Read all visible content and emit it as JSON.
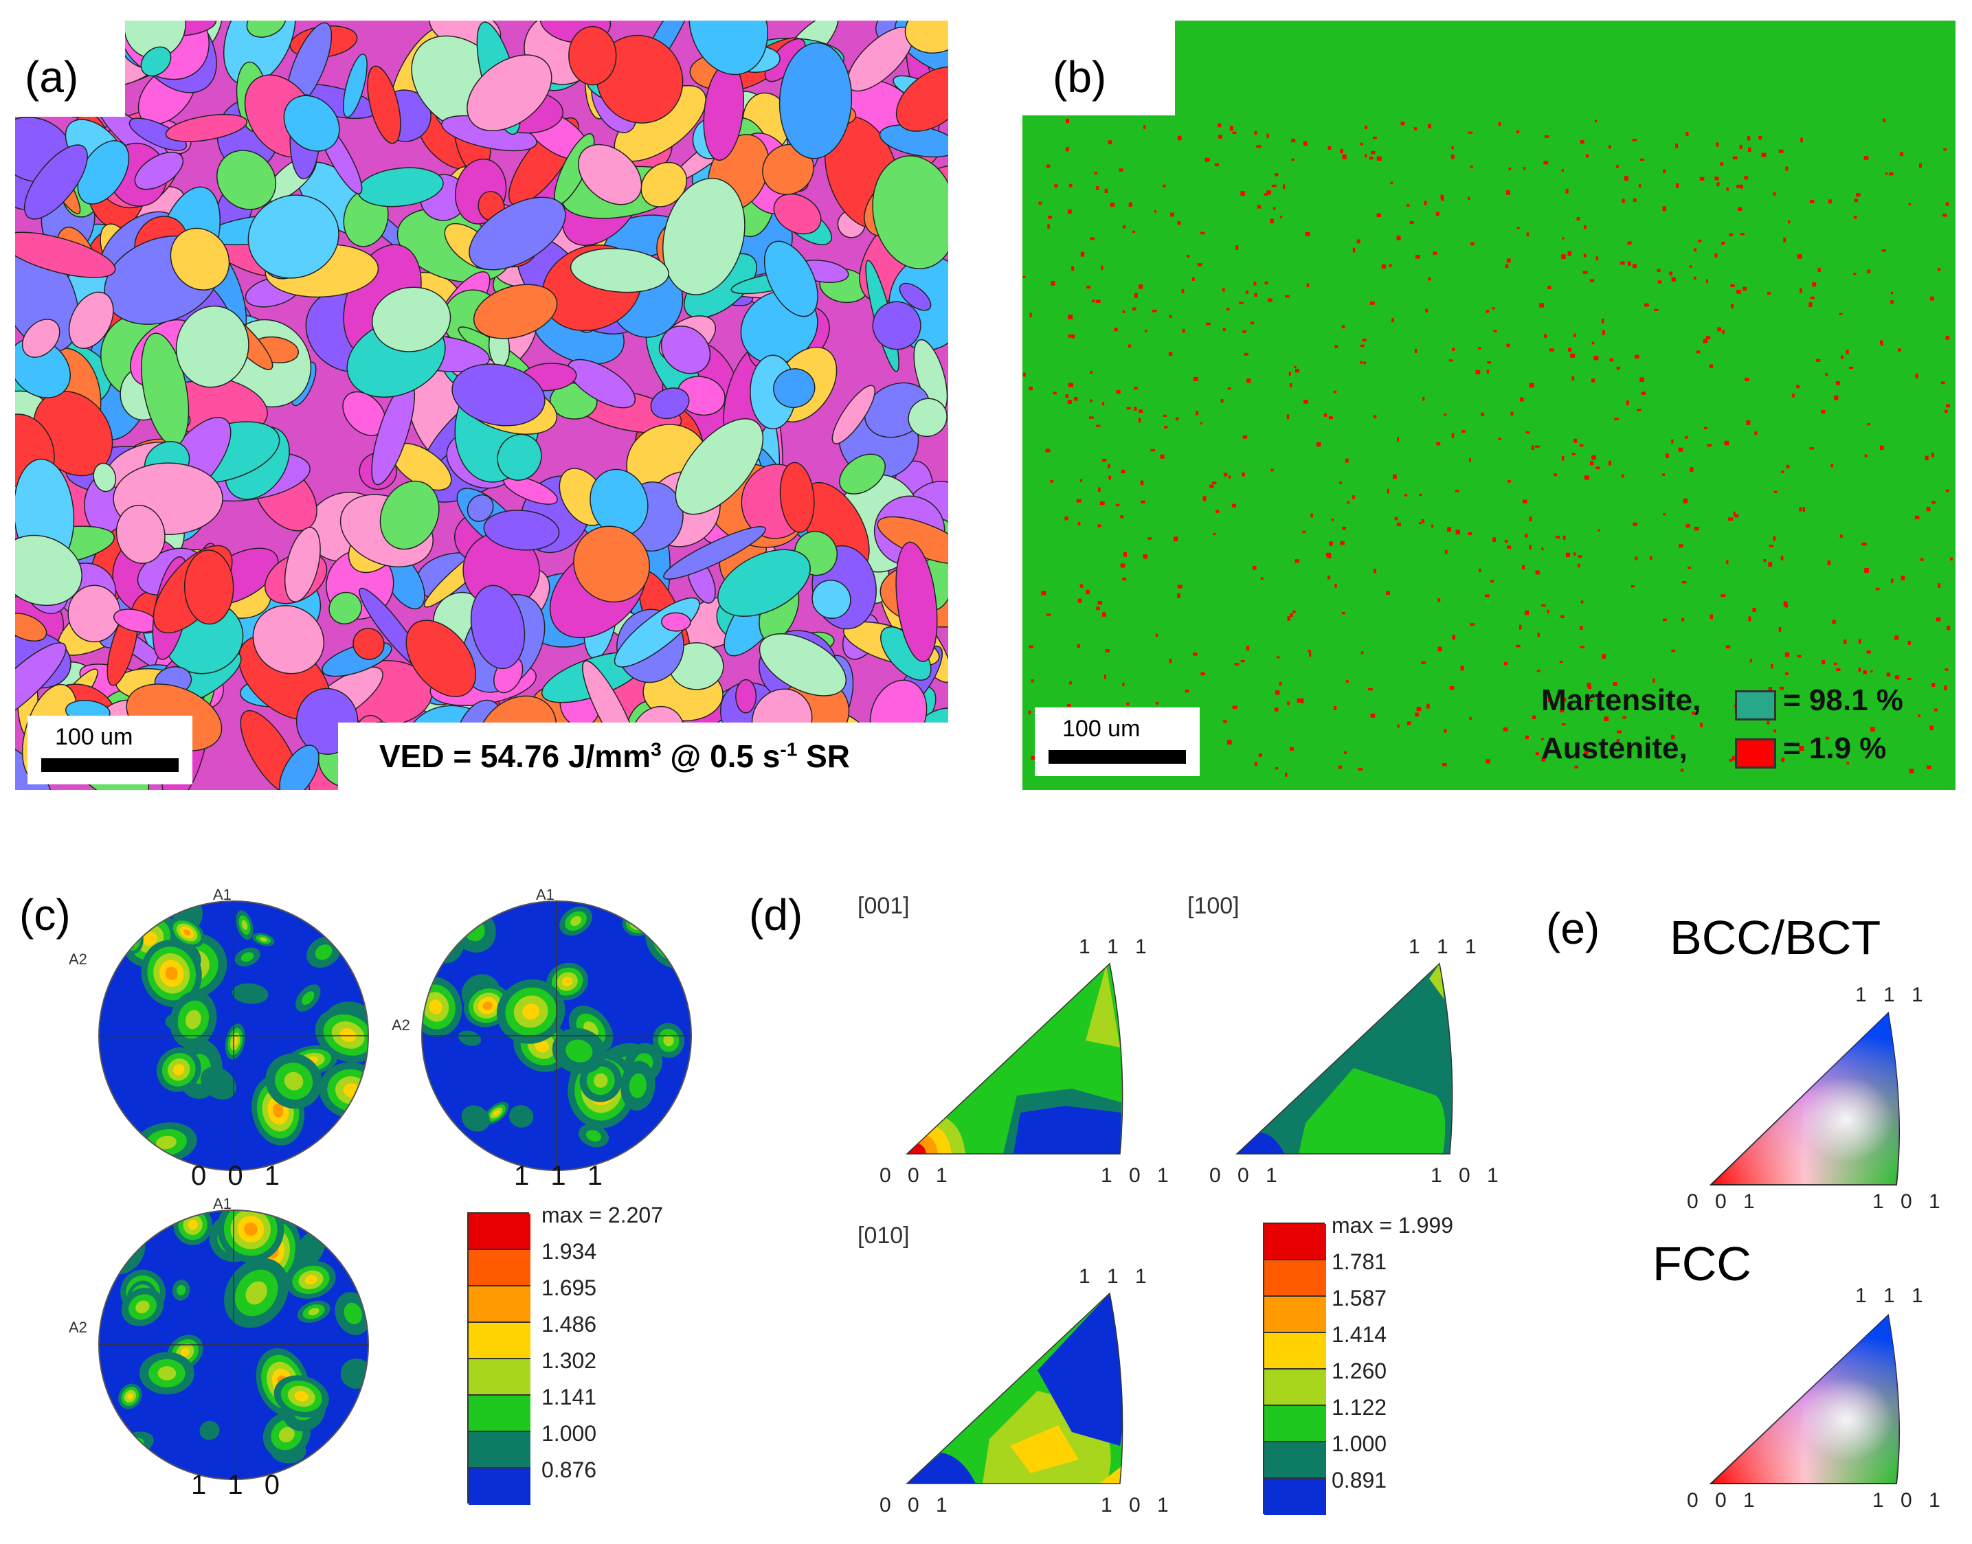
{
  "panel_a": {
    "label": "(a)",
    "scale_bar": "100 um",
    "caption_main": "VED = 54.76 J/mm",
    "caption_sup1": "3",
    "caption_mid": " @ 0.5 s",
    "caption_sup2": "-1",
    "caption_end": " SR"
  },
  "panel_b": {
    "label": "(b)",
    "scale_bar": "100 um",
    "legend": [
      {
        "name": "Martensite,",
        "value": "= 98.1 %",
        "color": "#27a88a"
      },
      {
        "name": "Austenite,",
        "value": "=  1.9 %",
        "color": "#ff0000"
      }
    ]
  },
  "panel_c": {
    "label": "(c)",
    "pole_figures": [
      {
        "name": "0 0 1",
        "axis1": "A1",
        "axis2": "A2"
      },
      {
        "name": "1 1 1",
        "axis1": "A1",
        "axis2": "A2"
      },
      {
        "name": "1 1 0",
        "axis1": "A1",
        "axis2": "A2"
      }
    ],
    "legend_max": "max = 2.207",
    "legend_values": [
      "1.934",
      "1.695",
      "1.486",
      "1.302",
      "1.141",
      "1.000",
      "0.876"
    ]
  },
  "panel_d": {
    "label": "(d)",
    "ipfs": [
      {
        "direction": "[001]",
        "corner_001": "0 0 1",
        "corner_101": "1 0 1",
        "corner_111": "1 1 1"
      },
      {
        "direction": "[100]",
        "corner_001": "0 0 1",
        "corner_101": "1 0 1",
        "corner_111": "1 1 1"
      },
      {
        "direction": "[010]",
        "corner_001": "0 0 1",
        "corner_101": "1 0 1",
        "corner_111": "1 1 1"
      }
    ],
    "legend_max": "max = 1.999",
    "legend_values": [
      "1.781",
      "1.587",
      "1.414",
      "1.260",
      "1.122",
      "1.000",
      "0.891"
    ]
  },
  "panel_e": {
    "label": "(e)",
    "keys": [
      {
        "title": "BCC/BCT",
        "corner_001": "0 0 1",
        "corner_101": "1 0 1",
        "corner_111": "1 1 1"
      },
      {
        "title": "FCC",
        "corner_001": "0 0 1",
        "corner_101": "1 0 1",
        "corner_111": "1 1 1"
      }
    ]
  },
  "colors": {
    "contour_scale": [
      "#e60000",
      "#ff5a00",
      "#ff9a00",
      "#ffd200",
      "#a8d61c",
      "#1ec81e",
      "#0e7c64",
      "#0a2ed6"
    ],
    "phase_green": "#1fbd1f",
    "phase_red": "#ff0000"
  }
}
